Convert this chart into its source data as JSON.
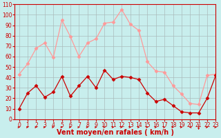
{
  "x": [
    0,
    1,
    2,
    3,
    4,
    5,
    6,
    7,
    8,
    9,
    10,
    11,
    12,
    13,
    14,
    15,
    16,
    17,
    18,
    19,
    20,
    21,
    22,
    23
  ],
  "y_mean": [
    10,
    25,
    32,
    21,
    26,
    41,
    22,
    32,
    41,
    30,
    47,
    38,
    41,
    40,
    38,
    25,
    17,
    19,
    13,
    7,
    6,
    6,
    20,
    42
  ],
  "y_gust": [
    43,
    53,
    68,
    73,
    59,
    95,
    79,
    60,
    73,
    77,
    92,
    93,
    105,
    91,
    85,
    55,
    46,
    45,
    32,
    24,
    15,
    14,
    42,
    43
  ],
  "line_color_mean": "#cc0000",
  "line_color_gust": "#ff9999",
  "marker": "D",
  "marker_size": 2.5,
  "background_color": "#c8eeed",
  "grid_color": "#aabbbb",
  "xlabel": "Vent moyen/en rafales ( km/h )",
  "xlabel_color": "#cc0000",
  "ylim": [
    0,
    110
  ],
  "xlim": [
    -0.5,
    23
  ],
  "yticks": [
    0,
    10,
    20,
    30,
    40,
    50,
    60,
    70,
    80,
    90,
    100,
    110
  ],
  "xticks": [
    0,
    1,
    2,
    3,
    4,
    5,
    6,
    7,
    8,
    9,
    10,
    11,
    12,
    13,
    14,
    15,
    16,
    17,
    18,
    19,
    20,
    21,
    22,
    23
  ],
  "tick_fontsize": 5.5,
  "xlabel_fontsize": 7,
  "arrow_color": "#cc0000",
  "spine_color": "#cc0000"
}
